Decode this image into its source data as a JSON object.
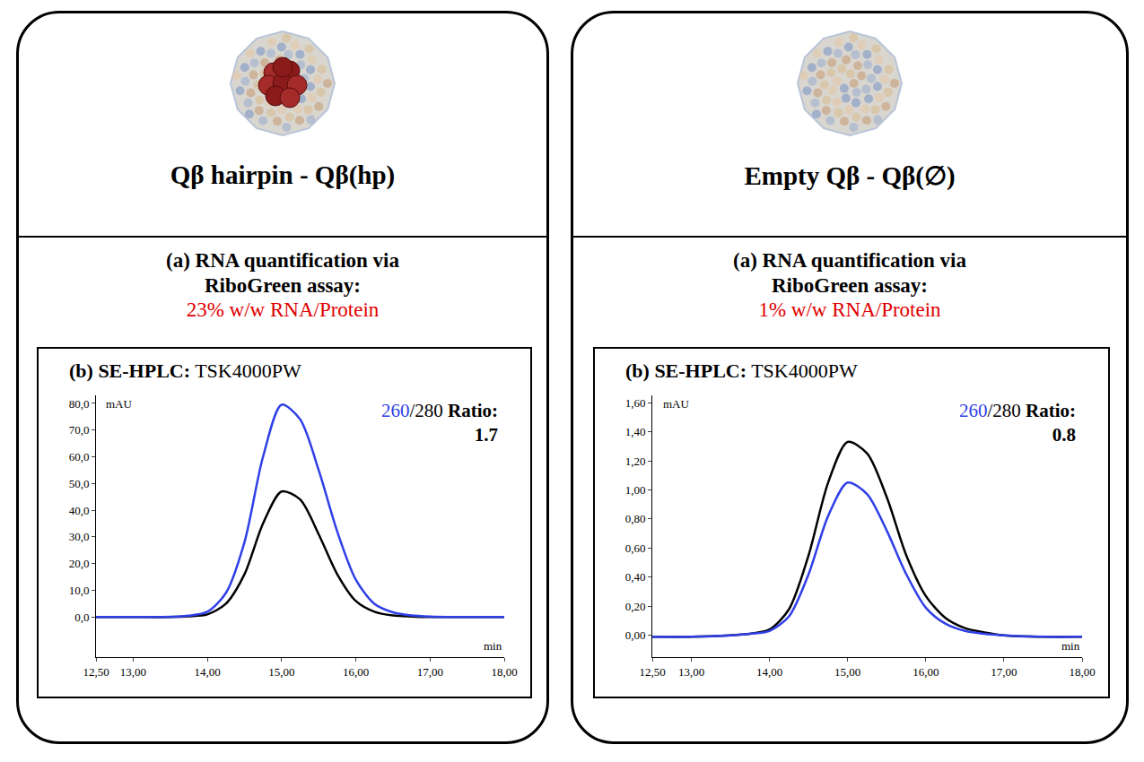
{
  "panels": [
    {
      "title": "Qβ hairpin - Qβ(hp)",
      "assay_heading": "(a) RNA quantification via RiboGreen assay:",
      "assay_result": "23% w/w RNA/Protein"
    },
    {
      "title": "Empty Qβ - Qβ(∅)",
      "assay_heading": "(a) RNA quantification via RiboGreen assay:",
      "assay_result": "1% w/w RNA/Protein"
    }
  ],
  "chart_data": [
    {
      "type": "line",
      "title": "(b) SE-HPLC: TSK4000PW",
      "x_label": "min",
      "y_label": "mAU",
      "xlim": [
        12.5,
        18
      ],
      "xticks": [
        {
          "value": 12.5,
          "label": "12,50"
        },
        {
          "value": 13,
          "label": "13,00"
        },
        {
          "value": 14,
          "label": "14,00"
        },
        {
          "value": 15,
          "label": "15,00"
        },
        {
          "value": 16,
          "label": "16,00"
        },
        {
          "value": 17,
          "label": "17,00"
        },
        {
          "value": 18,
          "label": "18,00"
        }
      ],
      "ylim": [
        -15,
        83
      ],
      "yticks": [
        {
          "value": 0,
          "label": "0,0"
        },
        {
          "value": 10,
          "label": "10,0"
        },
        {
          "value": 20,
          "label": "20,0"
        },
        {
          "value": 30,
          "label": "30,0"
        },
        {
          "value": 40,
          "label": "40,0"
        },
        {
          "value": 50,
          "label": "50,0"
        },
        {
          "value": 60,
          "label": "60,0"
        },
        {
          "value": 70,
          "label": "70,0"
        },
        {
          "value": 80,
          "label": "80,0"
        }
      ],
      "grid": false,
      "x": [
        12.5,
        13,
        13.5,
        13.75,
        14,
        14.25,
        14.5,
        14.75,
        15,
        15.25,
        15.5,
        15.75,
        16,
        16.25,
        16.5,
        16.75,
        17,
        17.5,
        18
      ],
      "series": [
        {
          "name": "260",
          "color": "#2f3fe6",
          "values": [
            0,
            0,
            0.1,
            0.5,
            2,
            9,
            28,
            60,
            79.5,
            74,
            55,
            32,
            14,
            5,
            1.8,
            0.6,
            0.2,
            0,
            0
          ]
        },
        {
          "name": "280",
          "color": "#000000",
          "values": [
            0,
            0,
            0,
            0.3,
            1,
            5,
            16,
            35,
            47,
            44,
            31,
            16,
            6,
            2,
            0.6,
            0.2,
            0,
            0,
            0
          ]
        }
      ],
      "annotations": [
        {
          "text": "260/280 Ratio:",
          "value": 1.7
        }
      ]
    },
    {
      "type": "line",
      "title": "(b) SE-HPLC: TSK4000PW",
      "x_label": "min",
      "y_label": "mAU",
      "xlim": [
        12.5,
        18
      ],
      "xticks": [
        {
          "value": 12.5,
          "label": "12,50"
        },
        {
          "value": 13,
          "label": "13,00"
        },
        {
          "value": 14,
          "label": "14,00"
        },
        {
          "value": 15,
          "label": "15,00"
        },
        {
          "value": 16,
          "label": "16,00"
        },
        {
          "value": 17,
          "label": "17,00"
        },
        {
          "value": 18,
          "label": "18,00"
        }
      ],
      "ylim": [
        -0.15,
        1.65
      ],
      "yticks": [
        {
          "value": 0,
          "label": "0,00"
        },
        {
          "value": 0.2,
          "label": "0,20"
        },
        {
          "value": 0.4,
          "label": "0,40"
        },
        {
          "value": 0.6,
          "label": "0,60"
        },
        {
          "value": 0.8,
          "label": "0,80"
        },
        {
          "value": 1,
          "label": "1,00"
        },
        {
          "value": 1.2,
          "label": "1,20"
        },
        {
          "value": 1.4,
          "label": "1,40"
        },
        {
          "value": 1.6,
          "label": "1,60"
        }
      ],
      "grid": false,
      "x": [
        12.5,
        13,
        13.5,
        13.75,
        14,
        14.25,
        14.5,
        14.75,
        15,
        15.25,
        15.5,
        15.75,
        16,
        16.25,
        16.5,
        16.75,
        17,
        17.5,
        18
      ],
      "series": [
        {
          "name": "260",
          "color": "#2f3fe6",
          "values": [
            -0.01,
            -0.01,
            0,
            0.01,
            0.03,
            0.13,
            0.42,
            0.82,
            1.05,
            0.97,
            0.72,
            0.42,
            0.19,
            0.08,
            0.03,
            0.01,
            0,
            -0.01,
            -0.01
          ]
        },
        {
          "name": "280",
          "color": "#000000",
          "values": [
            -0.01,
            -0.01,
            0,
            0.01,
            0.04,
            0.18,
            0.55,
            1.05,
            1.33,
            1.25,
            0.95,
            0.55,
            0.27,
            0.12,
            0.05,
            0.02,
            0,
            -0.01,
            -0.01
          ]
        }
      ],
      "annotations": [
        {
          "text": "260/280 Ratio:",
          "value": 0.8
        }
      ]
    }
  ]
}
